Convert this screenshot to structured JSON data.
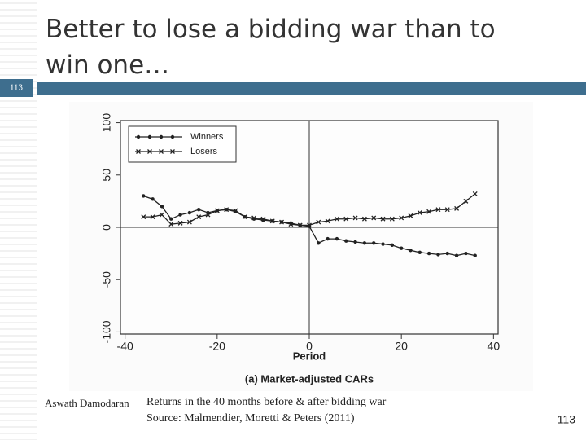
{
  "slide": {
    "title": "Better to lose a bidding war than to win one…",
    "badge": "113",
    "author": "Aswath Damodaran",
    "caption": "Returns in the 40 months before & after bidding war",
    "source": "Source: Malmendier, Moretti & Peters (2011)",
    "page_number": "113"
  },
  "chart_data": {
    "type": "line",
    "x_label": "Period",
    "subtitle": "(a) Market-adjusted CARs",
    "x": [
      -36,
      -34,
      -32,
      -30,
      -28,
      -26,
      -24,
      -22,
      -20,
      -18,
      -16,
      -14,
      -12,
      -10,
      -8,
      -6,
      -4,
      -2,
      0,
      2,
      4,
      6,
      8,
      10,
      12,
      14,
      16,
      18,
      20,
      22,
      24,
      26,
      28,
      30,
      32,
      34,
      36
    ],
    "series": [
      {
        "name": "Winners",
        "color": "#222222",
        "marker": "dot",
        "values": [
          30,
          27,
          20,
          8,
          12,
          14,
          17,
          14,
          16,
          17,
          15,
          10,
          8,
          7,
          6,
          5,
          4,
          2,
          1,
          -15,
          -11,
          -11,
          -13,
          -14,
          -15,
          -15,
          -16,
          -17,
          -20,
          -22,
          -24,
          -25,
          -26,
          -25,
          -27,
          -25,
          -27
        ]
      },
      {
        "name": "Losers",
        "color": "#222222",
        "marker": "cross",
        "values": [
          10,
          10,
          12,
          3,
          4,
          5,
          10,
          12,
          16,
          17,
          16,
          10,
          9,
          8,
          6,
          5,
          3,
          2,
          2,
          5,
          6,
          8,
          8,
          9,
          8,
          9,
          8,
          8,
          9,
          11,
          14,
          15,
          17,
          17,
          18,
          25,
          32
        ]
      }
    ],
    "xlim": [
      -41,
      41
    ],
    "ylim": [
      -102,
      102
    ],
    "xticks": [
      -40,
      -20,
      0,
      20,
      40
    ],
    "yticks": [
      -100,
      -50,
      0,
      50,
      100
    ],
    "legend": "upper-left",
    "grid": false
  }
}
